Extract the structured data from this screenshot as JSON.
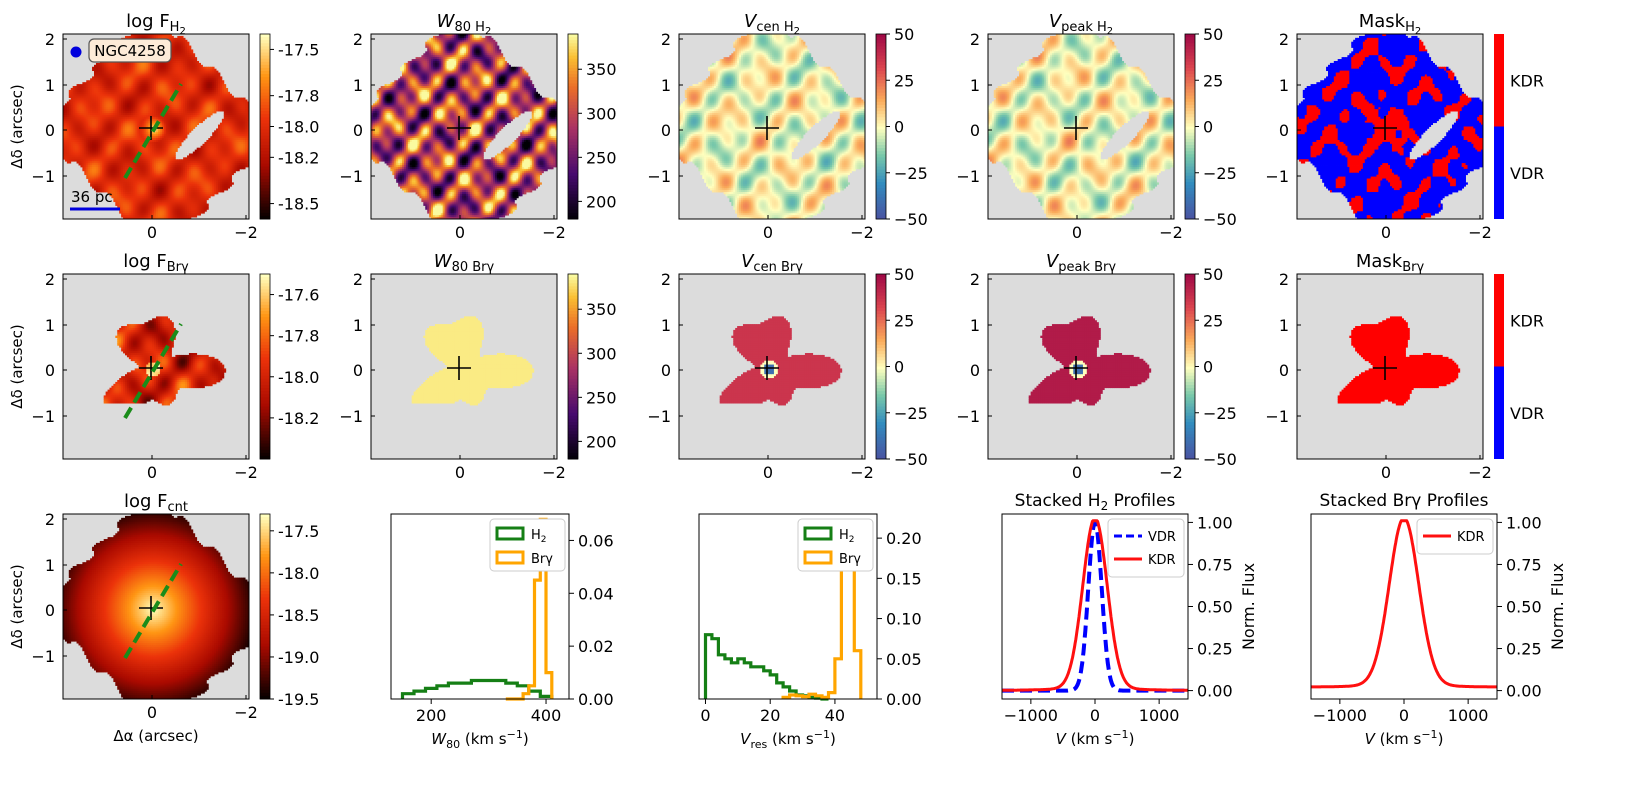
{
  "chart_data": [
    {
      "type": "heatmap",
      "title_main": "log F",
      "title_sub": "H",
      "title_sub2": "2",
      "map": "flux",
      "colorbar_ticks": [
        "-17.5",
        "-17.8",
        "-18.0",
        "-18.2",
        "-18.5"
      ],
      "colorbar_values": [
        -17.5,
        -17.8,
        -18.0,
        -18.2,
        -18.5
      ],
      "colorbar_range": [
        -18.6,
        -17.4
      ],
      "annotation": "NGC4258",
      "scalebar": "36 pc",
      "ylabel": "Δδ (arcsec)",
      "xticks": [
        "0",
        "−2"
      ],
      "yticks": [
        "2",
        "1",
        "0",
        "−1"
      ]
    },
    {
      "type": "heatmap",
      "title_main": "W",
      "title_sub": "80 H",
      "title_sub2": "2",
      "map": "width",
      "colorbar_ticks": [
        "350",
        "300",
        "250",
        "200"
      ],
      "colorbar_values": [
        350,
        300,
        250,
        200
      ],
      "colorbar_range": [
        180,
        390
      ],
      "xticks": [
        "0",
        "−2"
      ],
      "yticks": [
        "2",
        "1",
        "0",
        "−1"
      ]
    },
    {
      "type": "heatmap",
      "title_main": "V",
      "title_sub": "cen H",
      "title_sub2": "2",
      "map": "vel",
      "colorbar_ticks": [
        "50",
        "25",
        "0",
        "−25",
        "−50"
      ],
      "colorbar_values": [
        50,
        25,
        0,
        -25,
        -50
      ],
      "colorbar_range": [
        -50,
        50
      ],
      "xticks": [
        "0",
        "−2"
      ],
      "yticks": [
        "2",
        "1",
        "0",
        "−1"
      ]
    },
    {
      "type": "heatmap",
      "title_main": "V",
      "title_sub": "peak H",
      "title_sub2": "2",
      "map": "vel",
      "colorbar_ticks": [
        "50",
        "25",
        "0",
        "−25",
        "−50"
      ],
      "colorbar_values": [
        50,
        25,
        0,
        -25,
        -50
      ],
      "colorbar_range": [
        -50,
        50
      ],
      "xticks": [
        "0",
        "−2"
      ],
      "yticks": [
        "2",
        "1",
        "0",
        "−1"
      ]
    },
    {
      "type": "heatmap",
      "title_main": "Mask",
      "title_sub": "H",
      "title_sub2": "2",
      "map": "mask",
      "colorbar_ticks": [
        "KDR",
        "VDR"
      ],
      "xticks": [
        "0",
        "−2"
      ],
      "yticks": [
        "2",
        "1",
        "0",
        "−1"
      ]
    },
    {
      "type": "heatmap",
      "title_main": "log F",
      "title_sub": "Brγ",
      "title_sub2": "",
      "map": "fluxbr",
      "colorbar_ticks": [
        "-17.6",
        "-17.8",
        "-18.0",
        "-18.2"
      ],
      "colorbar_values": [
        -17.6,
        -17.8,
        -18.0,
        -18.2
      ],
      "colorbar_range": [
        -18.4,
        -17.5
      ],
      "ylabel": "Δδ (arcsec)",
      "xticks": [
        "0",
        "−2"
      ],
      "yticks": [
        "2",
        "1",
        "0",
        "−1"
      ]
    },
    {
      "type": "heatmap",
      "title_main": "W",
      "title_sub": "80 Brγ",
      "title_sub2": "",
      "map": "widthbr",
      "colorbar_ticks": [
        "350",
        "300",
        "250",
        "200"
      ],
      "colorbar_values": [
        350,
        300,
        250,
        200
      ],
      "colorbar_range": [
        180,
        390
      ],
      "xticks": [
        "0",
        "−2"
      ],
      "yticks": [
        "2",
        "1",
        "0",
        "−1"
      ]
    },
    {
      "type": "heatmap",
      "title_main": "V",
      "title_sub": "cen Brγ",
      "title_sub2": "",
      "map": "velbr",
      "colorbar_ticks": [
        "50",
        "25",
        "0",
        "−25",
        "−50"
      ],
      "colorbar_values": [
        50,
        25,
        0,
        -25,
        -50
      ],
      "colorbar_range": [
        -50,
        50
      ],
      "xticks": [
        "0",
        "−2"
      ],
      "yticks": [
        "2",
        "1",
        "0",
        "−1"
      ]
    },
    {
      "type": "heatmap",
      "title_main": "V",
      "title_sub": "peak Brγ",
      "title_sub2": "",
      "map": "velbr2",
      "colorbar_ticks": [
        "50",
        "25",
        "0",
        "−25",
        "−50"
      ],
      "colorbar_values": [
        50,
        25,
        0,
        -25,
        -50
      ],
      "colorbar_range": [
        -50,
        50
      ],
      "xticks": [
        "0",
        "−2"
      ],
      "yticks": [
        "2",
        "1",
        "0",
        "−1"
      ]
    },
    {
      "type": "heatmap",
      "title_main": "Mask",
      "title_sub": "Brγ",
      "title_sub2": "",
      "map": "maskbr",
      "colorbar_ticks": [
        "KDR",
        "VDR"
      ],
      "xticks": [
        "0",
        "−2"
      ],
      "yticks": [
        "2",
        "1",
        "0",
        "−1"
      ]
    },
    {
      "type": "heatmap",
      "title_main": "log F",
      "title_sub": "cnt",
      "title_sub2": "",
      "map": "cont",
      "colorbar_ticks": [
        "-17.5",
        "-18.0",
        "-18.5",
        "-19.0",
        "-19.5"
      ],
      "colorbar_values": [
        -17.5,
        -18.0,
        -18.5,
        -19.0,
        -19.5
      ],
      "colorbar_range": [
        -19.5,
        -17.3
      ],
      "ylabel": "Δδ (arcsec)",
      "xlabel": "Δα (arcsec)",
      "xticks": [
        "0",
        "−2"
      ],
      "yticks": [
        "2",
        "1",
        "0",
        "−1"
      ]
    },
    {
      "type": "bar",
      "title": "",
      "xlabel_main": "W",
      "xlabel_sub": "80",
      "xlabel_rest": " (km s",
      "xlabel_sup": "−1",
      "xlabel_end": ")",
      "xlim": [
        130,
        440
      ],
      "ylim": [
        0,
        0.07
      ],
      "xticks": [
        200,
        400
      ],
      "yticks": [
        0.0,
        0.02,
        0.04,
        0.06
      ],
      "series": [
        {
          "name": "H",
          "name_sub": "2",
          "color": "#157f15",
          "bin_width": 20,
          "bins": [
            150,
            170,
            190,
            210,
            230,
            250,
            270,
            290,
            310,
            330,
            350,
            370,
            390
          ],
          "values": [
            0.002,
            0.003,
            0.004,
            0.005,
            0.006,
            0.006,
            0.007,
            0.007,
            0.007,
            0.006,
            0.005,
            0.003,
            0.001
          ]
        },
        {
          "name": "Brγ",
          "name_sub": "",
          "color": "#ffa500",
          "bin_width": 10,
          "bins": [
            330,
            340,
            350,
            360,
            370,
            380,
            390,
            400
          ],
          "values": [
            0,
            0,
            0,
            0.002,
            0.005,
            0.045,
            0.068,
            0.01
          ]
        }
      ]
    },
    {
      "type": "bar",
      "title": "",
      "xlabel_main": "V",
      "xlabel_sub": "res",
      "xlabel_rest": " (km s",
      "xlabel_sup": "−1",
      "xlabel_end": ")",
      "xlim": [
        -2,
        53
      ],
      "ylim": [
        0,
        0.23
      ],
      "xticks": [
        0,
        20,
        40
      ],
      "yticks": [
        0.0,
        0.05,
        0.1,
        0.15,
        0.2
      ],
      "series": [
        {
          "name": "H",
          "name_sub": "2",
          "color": "#157f15",
          "bin_width": 2,
          "bins": [
            0,
            2,
            4,
            6,
            8,
            10,
            12,
            14,
            16,
            18,
            20,
            22,
            24,
            26,
            28,
            30,
            32,
            34,
            36
          ],
          "values": [
            0.08,
            0.075,
            0.055,
            0.05,
            0.045,
            0.05,
            0.045,
            0.04,
            0.04,
            0.035,
            0.03,
            0.02,
            0.015,
            0.01,
            0.005,
            0.004,
            0.002,
            0.001,
            0.0
          ]
        },
        {
          "name": "Brγ",
          "name_sub": "",
          "color": "#ffa500",
          "bin_width": 2,
          "bins": [
            24,
            26,
            28,
            30,
            32,
            34,
            36,
            38,
            40,
            42,
            44,
            46
          ],
          "values": [
            0.002,
            0.005,
            0.004,
            0.003,
            0.006,
            0.004,
            0.002,
            0.008,
            0.05,
            0.19,
            0.22,
            0.06
          ]
        }
      ]
    },
    {
      "type": "line",
      "title_main": "Stacked H",
      "title_sub": "2",
      "title_rest": " Profiles",
      "xlabel_main": "V",
      "xlabel_rest": " (km s",
      "xlabel_sup": "−1",
      "xlabel_end": ")",
      "ylabel": "Norm. Flux",
      "xlim": [
        -1450,
        1450
      ],
      "ylim": [
        -0.05,
        1.05
      ],
      "xticks": [
        -1000,
        0,
        1000
      ],
      "yticks": [
        0.0,
        0.25,
        0.5,
        0.75,
        1.0
      ],
      "series": [
        {
          "name": "VDR",
          "style": "dashed",
          "color": "#0000ff",
          "sigma": 105,
          "base": 0.0
        },
        {
          "name": "KDR",
          "style": "solid",
          "color": "#ff1010",
          "sigma": 190,
          "base": 0.0
        }
      ]
    },
    {
      "type": "line",
      "title_main": "Stacked Br",
      "title_sub": "",
      "title_rest": "γ Profiles",
      "xlabel_main": "V",
      "xlabel_rest": " (km s",
      "xlabel_sup": "−1",
      "xlabel_end": ")",
      "ylabel": "Norm. Flux",
      "xlim": [
        -1450,
        1450
      ],
      "ylim": [
        -0.05,
        1.05
      ],
      "xticks": [
        -1000,
        0,
        1000
      ],
      "yticks": [
        0.0,
        0.25,
        0.5,
        0.75,
        1.0
      ],
      "series": [
        {
          "name": "KDR",
          "style": "solid",
          "color": "#ff1010",
          "sigma": 230,
          "base": 0.02
        }
      ]
    }
  ]
}
